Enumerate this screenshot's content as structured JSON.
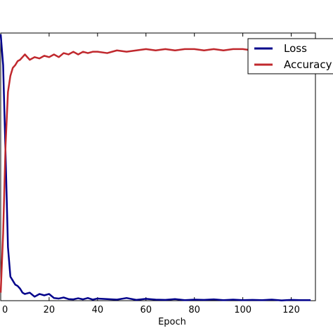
{
  "chart_data": {
    "type": "line",
    "title": "",
    "xlabel": "Epoch",
    "ylabel": "",
    "xlim": [
      0,
      130
    ],
    "ylim": [
      0,
      1
    ],
    "x_ticks": [
      0,
      20,
      40,
      60,
      80,
      100,
      120
    ],
    "grid": false,
    "legend": {
      "placement": "top-right",
      "entries": [
        "Loss",
        "Accuracy"
      ]
    },
    "series": [
      {
        "name": "Loss",
        "color": "#00008b",
        "x": [
          0,
          1,
          2,
          3,
          4,
          5,
          6,
          7,
          8,
          9,
          10,
          12,
          14,
          16,
          18,
          20,
          22,
          24,
          26,
          28,
          30,
          32,
          34,
          36,
          38,
          40,
          44,
          48,
          52,
          56,
          60,
          64,
          68,
          72,
          76,
          80,
          84,
          88,
          92,
          96,
          100,
          104,
          108,
          112,
          116,
          120,
          124,
          128
        ],
        "y": [
          0.995,
          0.88,
          0.55,
          0.2,
          0.09,
          0.075,
          0.06,
          0.055,
          0.045,
          0.03,
          0.025,
          0.03,
          0.015,
          0.025,
          0.02,
          0.025,
          0.01,
          0.008,
          0.012,
          0.006,
          0.005,
          0.009,
          0.005,
          0.01,
          0.004,
          0.008,
          0.006,
          0.004,
          0.01,
          0.003,
          0.007,
          0.004,
          0.003,
          0.006,
          0.002,
          0.004,
          0.003,
          0.005,
          0.002,
          0.004,
          0.002,
          0.003,
          0.002,
          0.004,
          0.001,
          0.003,
          0.002,
          0.002
        ]
      },
      {
        "name": "Accuracy",
        "color": "#c0282d",
        "x": [
          0,
          1,
          2,
          3,
          4,
          5,
          6,
          7,
          8,
          9,
          10,
          12,
          14,
          16,
          18,
          20,
          22,
          24,
          26,
          28,
          30,
          32,
          34,
          36,
          38,
          40,
          44,
          48,
          52,
          56,
          60,
          64,
          68,
          72,
          76,
          80,
          84,
          88,
          92,
          96,
          100,
          104,
          108,
          112,
          116,
          120,
          124,
          128
        ],
        "y": [
          0.03,
          0.25,
          0.58,
          0.78,
          0.84,
          0.87,
          0.88,
          0.895,
          0.9,
          0.91,
          0.92,
          0.9,
          0.91,
          0.905,
          0.915,
          0.91,
          0.92,
          0.91,
          0.925,
          0.92,
          0.93,
          0.92,
          0.93,
          0.925,
          0.93,
          0.93,
          0.925,
          0.935,
          0.93,
          0.935,
          0.94,
          0.935,
          0.94,
          0.935,
          0.94,
          0.94,
          0.935,
          0.94,
          0.935,
          0.94,
          0.94,
          0.935,
          0.94,
          0.935,
          0.94,
          0.94,
          0.935,
          0.94
        ]
      }
    ]
  }
}
